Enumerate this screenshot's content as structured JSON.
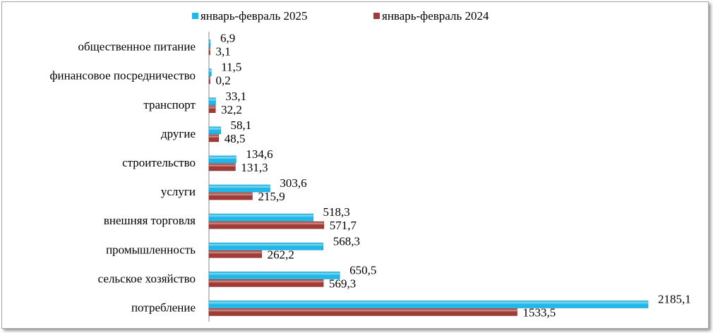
{
  "chart_data": {
    "type": "bar",
    "orientation": "horizontal",
    "categories": [
      "общественное питание",
      "финансовое посредничество",
      "транспорт",
      "другие",
      "строительство",
      "услуги",
      "внешняя торговля",
      "промышленность",
      "сельское хозяйство",
      "потребление"
    ],
    "series": [
      {
        "name": "январь-февраль 2025",
        "color": "#1fb8e8",
        "values": [
          6.9,
          11.5,
          33.1,
          58.1,
          134.6,
          303.6,
          518.3,
          568.3,
          650.5,
          2185.1
        ],
        "labels": [
          "6,9",
          "11,5",
          "33,1",
          "58,1",
          "134,6",
          "303,6",
          "518,3",
          "568,3",
          "650,5",
          "2185,1"
        ]
      },
      {
        "name": "январь-февраль 2024",
        "color": "#a23b36",
        "values": [
          3.1,
          0.2,
          32.2,
          48.5,
          131.3,
          215.9,
          571.7,
          262.2,
          569.3,
          1533.5
        ],
        "labels": [
          "3,1",
          "0,2",
          "32,2",
          "48,5",
          "131,3",
          "215,9",
          "571,7",
          "262,2",
          "569,3",
          "1533,5"
        ]
      }
    ],
    "xlim": [
      0,
      2185.1
    ],
    "x_axis_visible": false,
    "grid": false,
    "legend_position": "top"
  }
}
